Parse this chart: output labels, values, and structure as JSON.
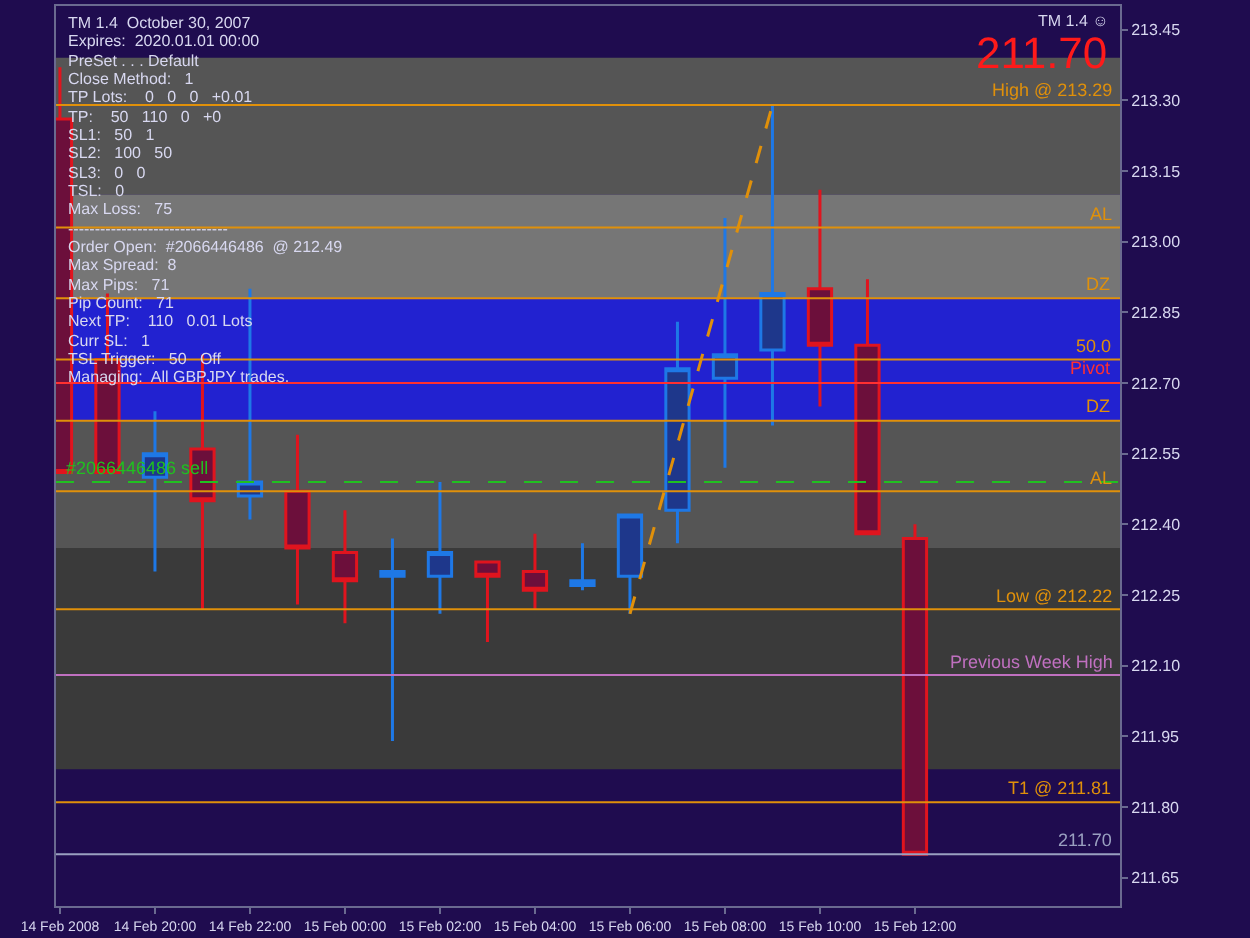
{
  "chart_data": {
    "type": "candlestick",
    "x": [
      "2008-02-14T18:00",
      "2008-02-14T19:00",
      "2008-02-14T20:00",
      "2008-02-14T21:00",
      "2008-02-14T22:00",
      "2008-02-14T23:00",
      "2008-02-15T00:00",
      "2008-02-15T01:00",
      "2008-02-15T02:00",
      "2008-02-15T03:00",
      "2008-02-15T04:00",
      "2008-02-15T05:00",
      "2008-02-15T06:00",
      "2008-02-15T07:00",
      "2008-02-15T08:00",
      "2008-02-15T09:00",
      "2008-02-15T10:00",
      "2008-02-15T11:00",
      "2008-02-15T12:00"
    ],
    "ohlc": [
      [
        213.26,
        213.37,
        212.51,
        212.51
      ],
      [
        212.75,
        212.89,
        212.51,
        212.51
      ],
      [
        212.5,
        212.64,
        212.3,
        212.55
      ],
      [
        212.56,
        212.76,
        212.22,
        212.45
      ],
      [
        212.46,
        212.9,
        212.41,
        212.49
      ],
      [
        212.47,
        212.59,
        212.23,
        212.35
      ],
      [
        212.34,
        212.43,
        212.19,
        212.28
      ],
      [
        212.29,
        212.37,
        211.94,
        212.3
      ],
      [
        212.29,
        212.49,
        212.21,
        212.34
      ],
      [
        212.32,
        212.32,
        212.15,
        212.29
      ],
      [
        212.3,
        212.38,
        212.22,
        212.26
      ],
      [
        212.27,
        212.36,
        212.26,
        212.28
      ],
      [
        212.29,
        212.42,
        212.21,
        212.42
      ],
      [
        212.43,
        212.83,
        212.36,
        212.73
      ],
      [
        212.71,
        213.05,
        212.52,
        212.76
      ],
      [
        212.77,
        213.29,
        212.61,
        212.89
      ],
      [
        212.9,
        213.11,
        212.65,
        212.78
      ],
      [
        212.78,
        212.92,
        212.38,
        212.38
      ],
      [
        212.37,
        212.4,
        211.7,
        211.7
      ]
    ],
    "colors": [
      "#e0141e",
      "#e0141e",
      "#1e78e6",
      "#e0141e",
      "#1e78e6",
      "#e0141e",
      "#e0141e",
      "#1e78e6",
      "#1e78e6",
      "#e0141e",
      "#e0141e",
      "#1e78e6",
      "#1e78e6",
      "#1e78e6",
      "#1e78e6",
      "#1e78e6",
      "#e0141e",
      "#e0141e",
      "#e0141e"
    ],
    "series": [
      {
        "type": "line",
        "color": "#e0900a",
        "line_style": "dashed",
        "x": [
          "2008-02-15T06:00",
          "2008-02-15T09:00"
        ],
        "values": [
          212.21,
          213.29
        ]
      }
    ],
    "xlim": [
      "2008-02-14T17:55",
      "2008-02-15T16:19"
    ],
    "xticks": [
      {
        "value": "2008-02-14T18:00",
        "label": "14 Feb 2008"
      },
      {
        "value": "2008-02-14T20:00",
        "label": "14 Feb 20:00"
      },
      {
        "value": "2008-02-14T22:00",
        "label": "14 Feb 22:00"
      },
      {
        "value": "2008-02-15T00:00",
        "label": "15 Feb 00:00"
      },
      {
        "value": "2008-02-15T02:00",
        "label": "15 Feb 02:00"
      },
      {
        "value": "2008-02-15T04:00",
        "label": "15 Feb 04:00"
      },
      {
        "value": "2008-02-15T06:00",
        "label": "15 Feb 06:00"
      },
      {
        "value": "2008-02-15T08:00",
        "label": "15 Feb 08:00"
      },
      {
        "value": "2008-02-15T10:00",
        "label": "15 Feb 10:00"
      },
      {
        "value": "2008-02-15T12:00",
        "label": "15 Feb 12:00"
      }
    ],
    "ylim": [
      211.59,
      213.5
    ],
    "yticks": [
      {
        "value": 213.45,
        "label": "213.45"
      },
      {
        "value": 213.3,
        "label": "213.30"
      },
      {
        "value": 213.15,
        "label": "213.15"
      },
      {
        "value": 213.0,
        "label": "213.00"
      },
      {
        "value": 212.85,
        "label": "212.85"
      },
      {
        "value": 212.7,
        "label": "212.70"
      },
      {
        "value": 212.55,
        "label": "212.55"
      },
      {
        "value": 212.4,
        "label": "212.40"
      },
      {
        "value": 212.25,
        "label": "212.25"
      },
      {
        "value": 212.1,
        "label": "212.10"
      },
      {
        "value": 211.95,
        "label": "211.95"
      },
      {
        "value": 211.8,
        "label": "211.80"
      },
      {
        "value": 211.65,
        "label": "211.65"
      }
    ],
    "grid": false,
    "bands": [
      {
        "axis": "y",
        "from": 213.1,
        "to": 213.39,
        "color": "#555555"
      },
      {
        "axis": "y",
        "from": 212.63,
        "to": 213.1,
        "color": "#767676"
      },
      {
        "axis": "y",
        "from": 212.35,
        "to": 212.63,
        "color": "#555555"
      },
      {
        "axis": "y",
        "from": 211.88,
        "to": 212.35,
        "color": "#3a3a3a"
      },
      {
        "axis": "y",
        "from": 212.62,
        "to": 212.88,
        "color": "#2222d0"
      }
    ],
    "ref_lines": [
      {
        "axis": "y",
        "value": 213.29,
        "label": "High @ 213.29",
        "color": "#e0900a"
      },
      {
        "axis": "y",
        "value": 213.03,
        "label": "AL",
        "color": "#e0900a"
      },
      {
        "axis": "y",
        "value": 212.88,
        "label": "DZ",
        "color": "#e0900a"
      },
      {
        "axis": "y",
        "value": 212.75,
        "color": "#e0900a"
      },
      {
        "axis": "y",
        "value": 212.62,
        "label": "DZ",
        "color": "#e0900a"
      },
      {
        "axis": "y",
        "value": 212.47,
        "label": "AL",
        "color": "#e0900a"
      },
      {
        "axis": "y",
        "value": 212.22,
        "label": "Low @ 212.22",
        "color": "#e0900a"
      },
      {
        "axis": "y",
        "value": 211.81,
        "label": "T1 @ 211.81",
        "color": "#e0900a"
      },
      {
        "axis": "y",
        "value": 212.7,
        "label": "Pivot",
        "color": "#ff3030"
      },
      {
        "axis": "y",
        "value": 212.08,
        "label": "Previous Week High",
        "color": "#c070c0"
      },
      {
        "axis": "y",
        "value": 212.49,
        "label": "#2066446486 sell",
        "color": "#20c020",
        "line_style": "dashed"
      },
      {
        "axis": "y",
        "value": 211.7,
        "label": "211.70",
        "color": "#9aa0c0"
      }
    ],
    "annotations": [
      "TM 1.4  October 30, 2007",
      "Expires:  2020.01.01 00:00",
      "PreSet . . . Default",
      "Close Method:   1",
      "TP Lots:    0   0   0   +0.01",
      "TP:    50   110   0   +0",
      "SL1:   50   1",
      "SL2:   100   50",
      "SL3:   0   0",
      "TSL:   0",
      "Max Loss:   75",
      "------------------------------",
      "Order Open:  #2066446486  @ 212.49",
      "Max Spread:  8",
      "Max Pips:   71",
      "Pip Count:   71",
      "Next TP:    110   0.01 Lots",
      "Curr SL:   1",
      "TSL Trigger:   50   Off",
      "Managing:  All GBPJPY trades.",
      {
        "text": "50.0",
        "x": "2008-02-15T16:19",
        "y": 212.75
      },
      "TM 1.4 ☺",
      "211.70"
    ]
  }
}
